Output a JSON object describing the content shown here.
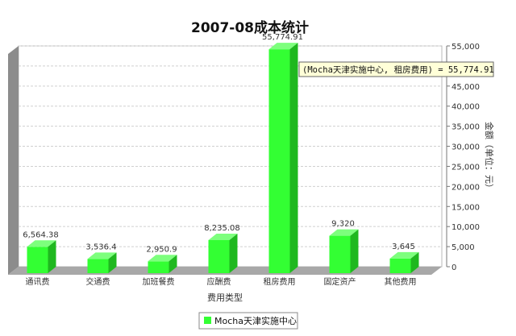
{
  "chart_data": {
    "type": "bar",
    "title": "2007-08成本统计",
    "xlabel": "费用类型",
    "ylabel": "金额（单位：元）",
    "ylim": [
      0,
      55000
    ],
    "yticks": [
      0,
      5000,
      10000,
      15000,
      20000,
      25000,
      30000,
      35000,
      40000,
      45000,
      50000,
      55000
    ],
    "ytick_labels": [
      "0",
      "5,000",
      "10,000",
      "15,000",
      "20,000",
      "25,000",
      "30,000",
      "35,000",
      "40,000",
      "45,000",
      "50,000",
      "55,000"
    ],
    "categories": [
      "通讯费",
      "交通费",
      "加班餐费",
      "应酬费",
      "租房费用",
      "固定资产",
      "其他费用"
    ],
    "series": [
      {
        "name": "Mocha天津实施中心",
        "values": [
          6564.38,
          3536.4,
          2950.9,
          8235.08,
          55774.91,
          9320,
          3645
        ],
        "labels": [
          "6,564.38",
          "3,536.4",
          "2,950.9",
          "8,235.08",
          "55,774.91",
          "9,320",
          "3,645"
        ],
        "color": "#33ff33"
      }
    ],
    "grid": true,
    "y_axis_side": "right",
    "legend_position": "bottom-center",
    "tooltip": "(Mocha天津实施中心, 租房费用) = 55,774.91"
  }
}
